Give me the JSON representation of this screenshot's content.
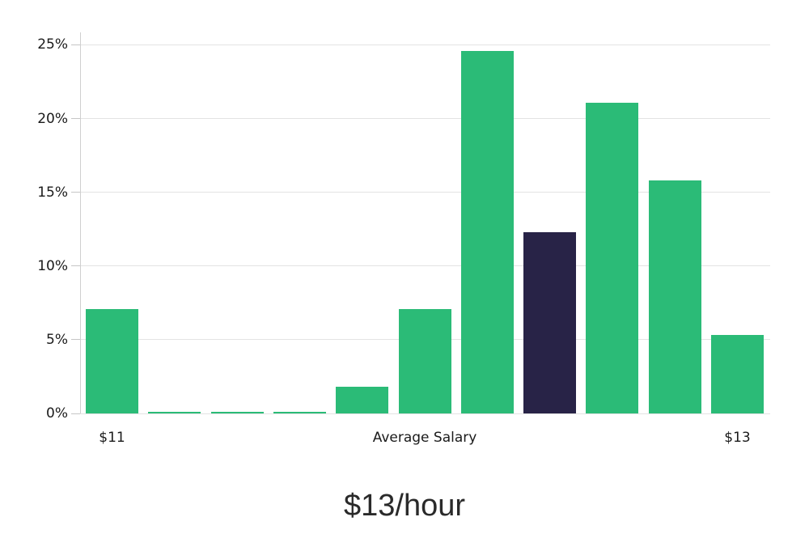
{
  "chart_data": {
    "type": "bar",
    "title": "$13/hour",
    "xlabel": "",
    "ylabel": "",
    "grid": true,
    "legend": "none",
    "ylim": [
      0,
      25.85
    ],
    "values": [
      7.1,
      0.1,
      0.1,
      0.1,
      1.8,
      7.1,
      24.6,
      12.3,
      21.1,
      15.8,
      5.3
    ],
    "highlight_index": 7,
    "y_ticks": [
      {
        "label": "0%",
        "value": 0
      },
      {
        "label": "5%",
        "value": 5
      },
      {
        "label": "10%",
        "value": 10
      },
      {
        "label": "15%",
        "value": 15
      },
      {
        "label": "20%",
        "value": 20
      },
      {
        "label": "25%",
        "value": 25
      }
    ],
    "x_ticks": [
      {
        "label": "$11",
        "bar_index": 0
      },
      {
        "label": "Average Salary",
        "bar_index": 5
      },
      {
        "label": "$13",
        "bar_index": 10
      }
    ],
    "colors": {
      "bar_default": "#2bbb77",
      "bar_highlight": "#282347",
      "gridline": "#e3e3e3",
      "axis": "#cfcfcf"
    }
  }
}
